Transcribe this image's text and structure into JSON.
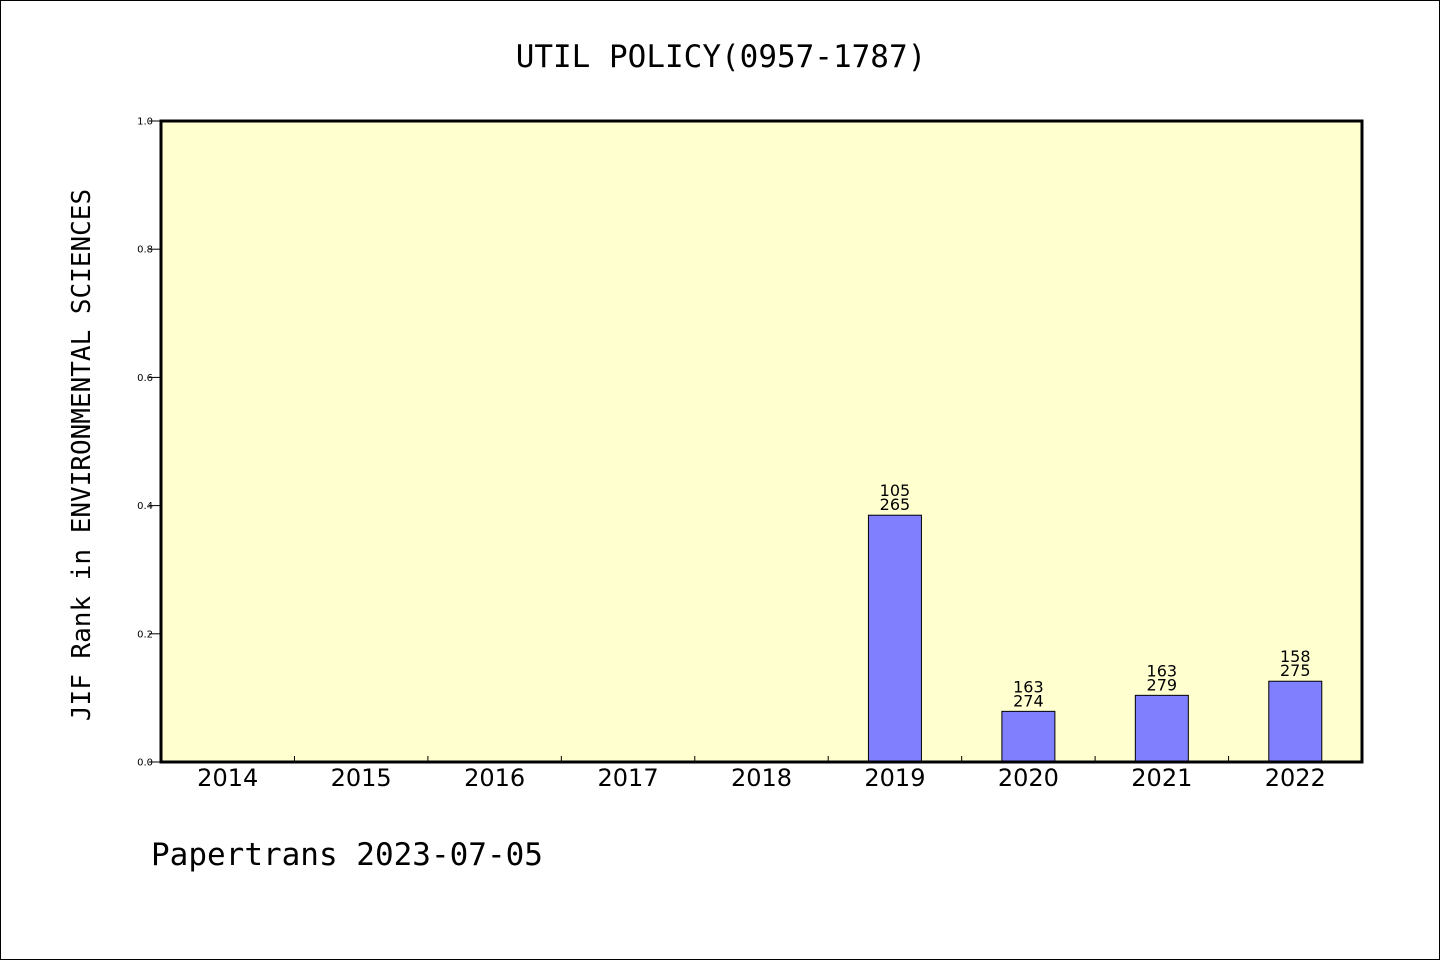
{
  "chart_data": {
    "type": "bar",
    "title": "UTIL POLICY(0957-1787)",
    "ylabel": "JIF Rank in ENVIRONMENTAL SCIENCES",
    "xlabel": "",
    "ylim": [
      0,
      1
    ],
    "yticks": [
      "0.0",
      "0.2",
      "0.4",
      "0.6",
      "0.8",
      "1.0"
    ],
    "categories": [
      "2014",
      "2015",
      "2016",
      "2017",
      "2018",
      "2019",
      "2020",
      "2021",
      "2022"
    ],
    "values": [
      null,
      null,
      null,
      null,
      null,
      0.385,
      0.079,
      0.104,
      0.126
    ],
    "labels_top": [
      "",
      "",
      "",
      "",
      "",
      "105",
      "163",
      "163",
      "158"
    ],
    "labels_bottom": [
      "",
      "",
      "",
      "",
      "",
      "265",
      "274",
      "279",
      "275"
    ],
    "grid": false,
    "colors": {
      "plot_background": "#FFFFD0",
      "bar_fill": "#8080FF",
      "bar_stroke": "#000000"
    }
  },
  "footer": {
    "text": "Papertrans 2023-07-05"
  }
}
